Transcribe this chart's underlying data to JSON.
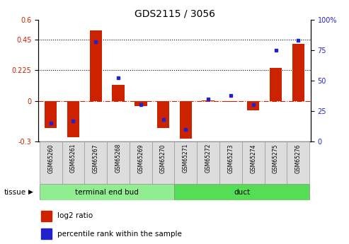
{
  "title": "GDS2115 / 3056",
  "samples": [
    "GSM65260",
    "GSM65261",
    "GSM65267",
    "GSM65268",
    "GSM65269",
    "GSM65270",
    "GSM65271",
    "GSM65272",
    "GSM65273",
    "GSM65274",
    "GSM65275",
    "GSM65276"
  ],
  "log2_ratio": [
    -0.2,
    -0.27,
    0.52,
    0.12,
    -0.04,
    -0.2,
    -0.28,
    0.005,
    -0.005,
    -0.07,
    0.245,
    0.42
  ],
  "percentile_rank": [
    15,
    17,
    82,
    52,
    30,
    18,
    10,
    35,
    38,
    30,
    75,
    83
  ],
  "groups": [
    {
      "name": "terminal end bud",
      "start": 0,
      "end": 6,
      "color": "#90EE90"
    },
    {
      "name": "duct",
      "start": 6,
      "end": 12,
      "color": "#55DD55"
    }
  ],
  "ylim_left": [
    -0.3,
    0.6
  ],
  "ylim_right": [
    0,
    100
  ],
  "yticks_left": [
    -0.3,
    0,
    0.225,
    0.45,
    0.6
  ],
  "yticks_right": [
    0,
    25,
    50,
    75,
    100
  ],
  "hlines": [
    0.225,
    0.45
  ],
  "bar_color": "#CC2200",
  "dot_color": "#2222CC",
  "zero_line_color": "#CC2200",
  "bar_width": 0.55,
  "background_color": "#ffffff",
  "tissue_label": "tissue"
}
